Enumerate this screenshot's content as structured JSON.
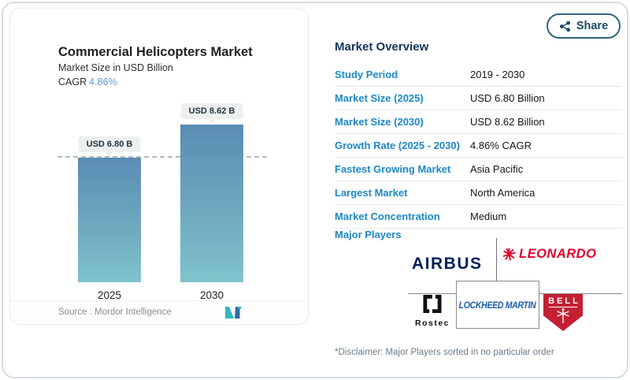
{
  "share": {
    "label": "Share",
    "icon": "share-nodes-icon"
  },
  "chart_card": {
    "title": "Commercial Helicopters Market",
    "subtitle": "Market Size in USD Billion",
    "cagr_label": "CAGR",
    "cagr_value": "4.86%",
    "source_label": "Source :  Mordor Intelligence",
    "logo": "mordor-intelligence-logo"
  },
  "chart_data": {
    "type": "bar",
    "categories": [
      "2025",
      "2030"
    ],
    "values": [
      6.8,
      8.62
    ],
    "unit": "USD Billion",
    "bar_labels": [
      "USD 6.80 B",
      "USD 8.62 B"
    ],
    "title": "Commercial Helicopters Market",
    "ylabel": "Market Size in USD Billion",
    "reference_line_value": 6.8,
    "grid": false,
    "legend": false,
    "colors": {
      "bar_gradient_top": "#5a8cb4",
      "bar_gradient_bottom": "#80c3cc",
      "reference_line": "#b9bcbc"
    }
  },
  "overview": {
    "heading": "Market Overview",
    "rows": [
      {
        "label": "Study Period",
        "value": "2019 - 2030"
      },
      {
        "label": "Market Size (2025)",
        "value": "USD 6.80 Billion"
      },
      {
        "label": "Market Size (2030)",
        "value": "USD 8.62 Billion"
      },
      {
        "label": "Growth Rate (2025 - 2030)",
        "value": "4.86% CAGR"
      },
      {
        "label": "Fastest Growing Market",
        "value": "Asia Pacific"
      },
      {
        "label": "Largest Market",
        "value": "North America"
      },
      {
        "label": "Market Concentration",
        "value": "Medium"
      }
    ],
    "major_players_label": "Major Players",
    "players": {
      "airbus": "AIRBUS",
      "leonardo": "LEONARDO",
      "rostec": "Rostec",
      "lockheed_martin": "LOCKHEED MARTIN",
      "bell": "BELL"
    },
    "disclaimer": "*Disclaimer: Major Players sorted in no particular order"
  },
  "colors": {
    "accent_blue": "#1d88c6",
    "cagr_blue": "#5b9bd5",
    "heading_navy": "#14365c",
    "airbus_navy": "#00205b",
    "leonardo_red": "#e4002b",
    "lockheed_blue": "#1f5fa8",
    "bell_red": "#c41f33",
    "share_border": "#2f6480"
  }
}
